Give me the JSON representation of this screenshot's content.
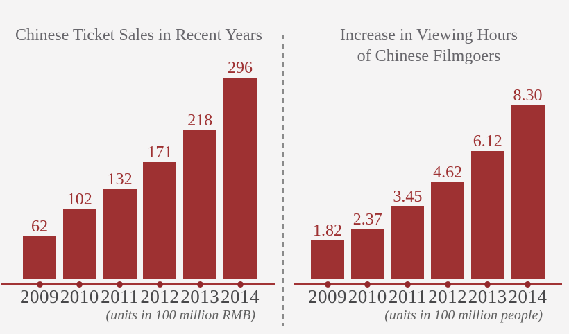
{
  "page": {
    "background": "#f5f4f4"
  },
  "colors": {
    "bar": "#9e3132",
    "value_label": "#9e3132",
    "axis_line": "#a13335",
    "axis_dot": "#93292c",
    "title": "#67666b",
    "year_label": "#48484a",
    "footnote": "#606060",
    "divider": "#8a8a8a"
  },
  "chart_data": [
    {
      "type": "bar",
      "title": "Chinese Ticket Sales in Recent Years",
      "title_lines": [
        "Chinese Ticket Sales in Recent Years"
      ],
      "categories": [
        "2009",
        "2010",
        "2011",
        "2012",
        "2013",
        "2014"
      ],
      "values": [
        62,
        102,
        132,
        171,
        218,
        296
      ],
      "value_labels": [
        "62",
        "102",
        "132",
        "171",
        "218",
        "296"
      ],
      "footnote": "(units in 100 million RMB)",
      "xlabel": "",
      "ylabel": "",
      "ylim": [
        0,
        300
      ],
      "grid": false,
      "legend": "none",
      "value_labels_position": "above-bars"
    },
    {
      "type": "bar",
      "title": "Increase in Viewing Hours of Chinese Filmgoers",
      "title_lines": [
        "Increase in Viewing Hours",
        "of Chinese Filmgoers"
      ],
      "categories": [
        "2009",
        "2010",
        "2011",
        "2012",
        "2013",
        "2014"
      ],
      "values": [
        1.82,
        2.37,
        3.45,
        4.62,
        6.12,
        8.3
      ],
      "value_labels": [
        "1.82",
        "2.37",
        "3.45",
        "4.62",
        "6.12",
        "8.30"
      ],
      "footnote": "(units in 100 million people)",
      "xlabel": "",
      "ylabel": "",
      "ylim": [
        0,
        8.5
      ],
      "grid": false,
      "legend": "none",
      "value_labels_position": "above-bars"
    }
  ]
}
